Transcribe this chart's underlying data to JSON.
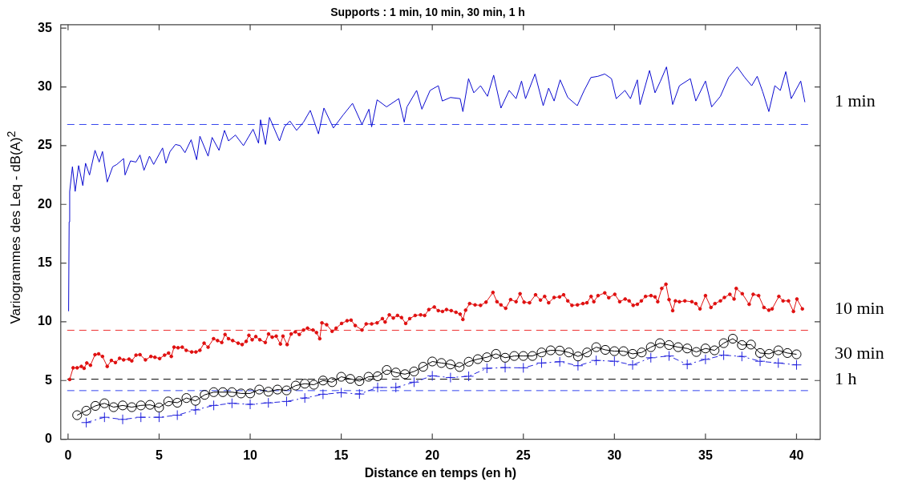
{
  "chart_data": {
    "type": "line",
    "title": "Supports : 1 min, 10 min, 30 min, 1 h",
    "xlabel": "Distance en temps (en h)",
    "ylabel": "Variogrammes des Leq - dB(A)$^{2}$",
    "xlim": [
      -0.4,
      41.3
    ],
    "ylim": [
      0,
      35.3
    ],
    "xticks": [
      0,
      5,
      10,
      15,
      20,
      25,
      30,
      35,
      40
    ],
    "yticks": [
      0,
      5,
      10,
      15,
      20,
      25,
      30,
      35
    ],
    "ref_lines": [
      {
        "axis": "y",
        "value": 26.8,
        "color": "#3344ee",
        "line_style": "dashed"
      },
      {
        "axis": "y",
        "value": 9.28,
        "color": "#ee3333",
        "line_style": "dashed"
      },
      {
        "axis": "y",
        "value": 5.11,
        "color": "#000000",
        "line_style": "dashed"
      },
      {
        "axis": "y",
        "value": 4.14,
        "color": "#3344ee",
        "line_style": "dashed"
      }
    ],
    "series": [
      {
        "name": "1 min",
        "color": "#0a0ad0",
        "marker": "none",
        "line_style": "solid",
        "x": [
          0.03,
          0.06,
          0.09,
          0.24,
          0.39,
          0.58,
          0.81,
          0.96,
          1.18,
          1.48,
          1.71,
          1.89,
          2.15,
          2.45,
          2.68,
          3.05,
          3.13,
          3.43,
          3.73,
          3.95,
          4.17,
          4.47,
          4.7,
          5.19,
          5.37,
          5.6,
          5.9,
          6.16,
          6.42,
          6.76,
          7.06,
          7.24,
          7.69,
          7.91,
          8.29,
          8.59,
          8.81,
          9.19,
          9.63,
          10.16,
          10.46,
          10.57,
          10.84,
          11.06,
          11.61,
          11.88,
          12.18,
          12.55,
          12.93,
          13.3,
          13.75,
          14.05,
          14.57,
          15.1,
          15.62,
          16.14,
          16.52,
          16.67,
          16.97,
          17.49,
          18.16,
          18.46,
          18.61,
          19.14,
          19.43,
          19.88,
          20.33,
          20.55,
          21.0,
          21.53,
          21.68,
          21.99,
          22.28,
          22.65,
          23.03,
          23.37,
          23.77,
          24.22,
          24.6,
          24.9,
          25.12,
          25.64,
          26.09,
          26.39,
          26.69,
          27.02,
          27.44,
          27.96,
          28.34,
          28.71,
          29.09,
          29.47,
          29.84,
          30.1,
          30.58,
          30.88,
          31.26,
          31.41,
          31.93,
          32.23,
          32.53,
          32.86,
          33.2,
          33.57,
          34.17,
          34.47,
          35.0,
          35.34,
          35.82,
          36.27,
          36.74,
          37.16,
          37.54,
          37.84,
          38.14,
          38.48,
          38.81,
          39.11,
          39.41,
          39.71,
          40.23,
          40.46
        ],
        "values": [
          10.9,
          18.5,
          21.1,
          23.2,
          21.1,
          23.3,
          21.6,
          23.5,
          22.5,
          24.6,
          23.6,
          24.5,
          21.9,
          23.2,
          23.4,
          23.9,
          22.5,
          23.7,
          23.6,
          24.2,
          22.9,
          24.1,
          23.4,
          24.8,
          23.5,
          24.5,
          25.1,
          25.0,
          24.4,
          25.5,
          23.8,
          25.8,
          24.1,
          25.7,
          24.6,
          26.3,
          25.4,
          25.9,
          25.0,
          26.4,
          25.2,
          27.2,
          25.1,
          27.4,
          25.4,
          26.6,
          27.1,
          26.3,
          27.0,
          28.0,
          26.0,
          28.2,
          26.5,
          27.6,
          28.6,
          26.8,
          28.1,
          26.6,
          28.9,
          28.3,
          29.0,
          27.0,
          28.3,
          29.7,
          28.1,
          29.7,
          30.1,
          28.8,
          29.1,
          29.0,
          27.9,
          30.7,
          29.5,
          30.1,
          29.2,
          31.0,
          28.2,
          29.7,
          29.0,
          30.5,
          29.0,
          31.1,
          28.4,
          29.9,
          28.8,
          30.6,
          29.1,
          28.4,
          29.7,
          30.8,
          30.9,
          31.1,
          30.7,
          29.0,
          29.7,
          29.0,
          30.6,
          28.5,
          31.4,
          29.5,
          30.5,
          31.7,
          28.5,
          30.1,
          30.7,
          28.8,
          30.5,
          28.3,
          29.2,
          30.8,
          31.7,
          30.8,
          30.1,
          30.9,
          29.6,
          27.9,
          30.1,
          29.7,
          31.3,
          29.0,
          30.5,
          28.7
        ]
      },
      {
        "name": "10 min",
        "color": "#e01010",
        "marker": "circle",
        "line_style": "solid",
        "x": [
          0.09,
          0.28,
          0.5,
          0.73,
          0.88,
          1.03,
          1.23,
          1.48,
          1.68,
          1.89,
          2.15,
          2.38,
          2.6,
          2.83,
          3.05,
          3.35,
          3.5,
          3.73,
          3.95,
          4.25,
          4.55,
          4.77,
          5.03,
          5.3,
          5.52,
          5.67,
          5.82,
          6.04,
          6.27,
          6.49,
          6.79,
          7.02,
          7.24,
          7.47,
          7.69,
          7.99,
          8.21,
          8.44,
          8.62,
          8.81,
          9.04,
          9.34,
          9.56,
          9.78,
          9.93,
          10.11,
          10.31,
          10.53,
          10.83,
          11.01,
          11.21,
          11.43,
          11.66,
          11.8,
          12.03,
          12.25,
          12.48,
          12.7,
          12.93,
          13.15,
          13.45,
          13.64,
          13.82,
          13.94,
          14.2,
          14.5,
          14.72,
          15.02,
          15.32,
          15.54,
          15.77,
          16.14,
          16.37,
          16.67,
          16.97,
          17.26,
          17.41,
          17.64,
          17.86,
          18.09,
          18.31,
          18.54,
          18.76,
          19.06,
          19.36,
          19.58,
          19.81,
          20.11,
          20.33,
          20.56,
          20.78,
          21.04,
          21.3,
          21.53,
          21.68,
          21.83,
          22.05,
          22.35,
          22.65,
          22.95,
          23.33,
          23.55,
          23.77,
          24.03,
          24.3,
          24.6,
          24.82,
          25.04,
          25.34,
          25.67,
          25.94,
          26.17,
          26.39,
          26.69,
          26.99,
          27.21,
          27.44,
          27.67,
          27.97,
          28.27,
          28.49,
          28.72,
          28.87,
          29.1,
          29.47,
          29.69,
          30.02,
          30.29,
          30.59,
          30.81,
          31.03,
          31.26,
          31.48,
          31.71,
          32.01,
          32.23,
          32.38,
          32.6,
          32.83,
          33.0,
          33.2,
          33.35,
          33.57,
          33.87,
          34.25,
          34.47,
          34.7,
          35.0,
          35.3,
          35.52,
          35.82,
          36.04,
          36.34,
          36.57,
          36.69,
          37.02,
          37.4,
          37.62,
          37.92,
          38.21,
          38.48,
          38.66,
          39.03,
          39.26,
          39.56,
          39.83,
          40.02,
          40.32
        ],
        "values": [
          5.09,
          6.08,
          6.08,
          6.2,
          6.04,
          6.49,
          6.3,
          7.2,
          7.27,
          7.05,
          6.2,
          6.71,
          6.53,
          6.89,
          6.76,
          6.82,
          6.67,
          7.16,
          7.2,
          6.76,
          7.05,
          6.98,
          6.87,
          7.16,
          7.34,
          7.05,
          7.84,
          7.79,
          7.84,
          7.57,
          7.43,
          7.43,
          7.57,
          8.18,
          7.84,
          8.56,
          8.4,
          8.24,
          8.92,
          8.56,
          8.4,
          8.18,
          8.06,
          8.33,
          8.85,
          8.47,
          8.74,
          8.47,
          8.24,
          8.96,
          8.69,
          8.78,
          8.11,
          8.78,
          8.06,
          8.96,
          9.14,
          8.92,
          9.3,
          9.46,
          9.3,
          9.08,
          8.56,
          9.91,
          9.75,
          9.19,
          9.46,
          9.86,
          10.09,
          10.14,
          9.68,
          9.3,
          9.82,
          9.82,
          9.91,
          10.27,
          9.98,
          10.59,
          10.32,
          10.54,
          10.36,
          9.86,
          10.27,
          10.54,
          10.59,
          10.54,
          11.04,
          11.26,
          10.95,
          10.88,
          11.04,
          10.95,
          10.81,
          10.65,
          10.2,
          10.99,
          11.55,
          11.44,
          11.4,
          11.67,
          12.5,
          11.71,
          11.44,
          11.15,
          11.89,
          11.71,
          12.39,
          11.67,
          11.62,
          12.3,
          11.85,
          12.16,
          11.62,
          12.07,
          12.12,
          12.3,
          11.78,
          11.4,
          11.44,
          11.55,
          11.62,
          12.16,
          11.71,
          12.23,
          12.46,
          12.05,
          12.34,
          11.71,
          11.94,
          11.78,
          11.4,
          11.49,
          11.78,
          12.16,
          12.23,
          12.12,
          11.71,
          12.84,
          13.2,
          11.89,
          10.95,
          11.78,
          11.71,
          11.78,
          11.71,
          11.55,
          11.1,
          12.23,
          11.22,
          11.55,
          11.78,
          12.07,
          12.34,
          11.94,
          12.84,
          12.39,
          11.49,
          12.34,
          12.23,
          11.22,
          10.99,
          11.1,
          12.16,
          11.78,
          11.78,
          10.88,
          11.94,
          11.1
        ]
      },
      {
        "name": "30 min",
        "color": "#000000",
        "marker": "circle",
        "line_style": "solid",
        "x": [
          0.5,
          1,
          1.5,
          2,
          2.5,
          3,
          3.5,
          4,
          4.5,
          5,
          5.5,
          6,
          6.5,
          7,
          7.5,
          8,
          8.5,
          9,
          9.5,
          10,
          10.5,
          11,
          11.5,
          12,
          12.5,
          13,
          13.5,
          14,
          14.5,
          15,
          15.5,
          16,
          16.5,
          17,
          17.5,
          18,
          18.5,
          19,
          19.5,
          20,
          20.5,
          21,
          21.5,
          22,
          22.5,
          23,
          23.5,
          24,
          24.5,
          25,
          25.5,
          26,
          26.5,
          27,
          27.5,
          28,
          28.5,
          29,
          29.5,
          30,
          30.5,
          31,
          31.5,
          32,
          32.5,
          33,
          33.5,
          34,
          34.5,
          35,
          35.5,
          36,
          36.5,
          37,
          37.5,
          38,
          38.5,
          39,
          39.5,
          40
        ],
        "values": [
          2.05,
          2.43,
          2.84,
          3.06,
          2.73,
          2.88,
          2.73,
          2.88,
          2.93,
          2.7,
          3.22,
          3.11,
          3.51,
          3.27,
          3.78,
          4.01,
          4.01,
          4.01,
          3.9,
          3.9,
          4.23,
          4.05,
          4.23,
          4.16,
          4.57,
          4.73,
          4.64,
          5.0,
          4.86,
          5.32,
          5.14,
          4.95,
          5.32,
          5.36,
          5.9,
          5.68,
          5.54,
          5.77,
          6.17,
          6.62,
          6.49,
          6.37,
          6.15,
          6.6,
          6.82,
          6.98,
          7.27,
          6.94,
          7.09,
          7.09,
          7.09,
          7.39,
          7.57,
          7.55,
          7.39,
          7.05,
          7.39,
          7.84,
          7.61,
          7.5,
          7.5,
          7.27,
          7.39,
          7.84,
          8.18,
          8.02,
          7.84,
          7.73,
          7.43,
          7.73,
          7.57,
          8.18,
          8.56,
          8.02,
          8.06,
          7.34,
          7.27,
          7.57,
          7.34,
          7.23
        ]
      },
      {
        "name": "1 h",
        "color": "#2222dd",
        "marker": "cross",
        "line_style": "dashed",
        "x": [
          1,
          2,
          3,
          4,
          5,
          6,
          7,
          8,
          9,
          10,
          11,
          12,
          13,
          14,
          15,
          16,
          17,
          18,
          19,
          20,
          21,
          22,
          23,
          24,
          25,
          26,
          27,
          28,
          29,
          30,
          31,
          32,
          33,
          34,
          35,
          36,
          37,
          38,
          39,
          40
        ],
        "values": [
          1.42,
          1.87,
          1.69,
          1.87,
          1.87,
          2.05,
          2.5,
          2.88,
          3.06,
          2.97,
          3.1,
          3.22,
          3.51,
          3.83,
          3.96,
          3.85,
          4.41,
          4.41,
          4.86,
          5.4,
          5.25,
          5.36,
          6.04,
          6.1,
          6.08,
          6.49,
          6.6,
          6.26,
          6.71,
          6.64,
          6.33,
          6.94,
          7.09,
          6.37,
          6.8,
          7.16,
          7.05,
          6.64,
          6.49,
          6.33
        ]
      }
    ]
  }
}
